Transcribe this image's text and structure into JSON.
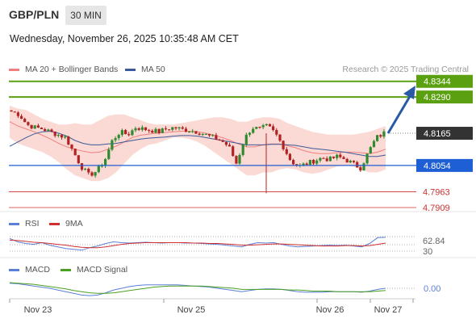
{
  "header": {
    "symbol": "GBP/PLN",
    "timeframe": "30 MIN",
    "datetime": "Wednesday, November 26, 2025 10:35:48 AM CET"
  },
  "legend": {
    "ma20": "MA 20 + Bollinger Bands",
    "ma50": "MA 50",
    "research": "Research © 2025 Trading Central",
    "rsi": "RSI",
    "rsi_ma": "9MA",
    "macd": "MACD",
    "macd_signal": "MACD Signal"
  },
  "colors": {
    "candle_up": "#2e8b2e",
    "candle_down": "#b22222",
    "bollinger_fill": "#fbd9d4",
    "ma20": "#f08080",
    "ma50": "#3b5a9a",
    "resistance": "#5aa010",
    "support_blue": "#1f5fd6",
    "support_red": "#d03030",
    "price_badge": "#333333",
    "arrow": "#2a5aa5"
  },
  "levels": {
    "r2": "4.8344",
    "r1": "4.8290",
    "current": "4.8165",
    "pivot": "4.8054",
    "s1": "4.7963",
    "s2": "4.7909"
  },
  "indicators": {
    "rsi_value": "62.84",
    "rsi_low": "30",
    "macd_value": "0.00"
  },
  "xaxis": {
    "labels": [
      "Nov 23",
      "Nov 25",
      "Nov 26",
      "Nov 27"
    ]
  },
  "chart_data": [
    {
      "type": "candlestick",
      "title": "GBP/PLN 30 MIN",
      "yrange": [
        4.7895,
        4.836
      ],
      "levels": [
        4.8344,
        4.829,
        4.8054,
        4.7963,
        4.7909
      ],
      "current": 4.8165,
      "close_path": [
        4.824,
        4.823,
        4.8195,
        4.8185,
        4.818,
        4.817,
        4.816,
        4.815,
        4.81,
        4.805,
        4.802,
        4.8035,
        4.807,
        4.814,
        4.817,
        4.816,
        4.8185,
        4.818,
        4.8175,
        4.817,
        4.818,
        4.8185,
        4.8178,
        4.8175,
        4.817,
        4.816,
        4.815,
        4.814,
        4.812,
        4.806,
        4.8145,
        4.8185,
        4.818,
        4.819,
        4.8165,
        4.812,
        4.807,
        4.805,
        4.806,
        4.807,
        4.808,
        4.8075,
        4.8085,
        4.8075,
        4.806,
        4.8045,
        4.81,
        4.815,
        4.8165
      ],
      "bollinger_upper": [
        4.826,
        4.825,
        4.8245,
        4.823,
        4.8215,
        4.8205,
        4.8195,
        4.8195,
        4.82,
        4.8195,
        4.8195,
        4.821,
        4.8225,
        4.823,
        4.823,
        4.822,
        4.821,
        4.82,
        4.8195,
        4.8195,
        4.8195,
        4.82,
        4.8205,
        4.821,
        4.8215,
        4.822,
        4.822,
        4.8215,
        4.8205,
        4.8205,
        4.8215,
        4.822,
        4.822,
        4.8215,
        4.82,
        4.819,
        4.818,
        4.817,
        4.8165,
        4.816,
        4.816,
        4.816,
        4.816,
        4.8165,
        4.817,
        4.818,
        4.819
      ],
      "bollinger_lower": [
        4.815,
        4.813,
        4.812,
        4.811,
        4.81,
        4.8085,
        4.8065,
        4.804,
        4.802,
        4.801,
        4.8,
        4.8,
        4.801,
        4.803,
        4.806,
        4.809,
        4.811,
        4.8125,
        4.813,
        4.814,
        4.815,
        4.815,
        4.8145,
        4.8135,
        4.812,
        4.81,
        4.808,
        4.806,
        4.804,
        4.802,
        4.802,
        4.803,
        4.803,
        4.804,
        4.8045,
        4.804,
        4.803,
        4.8025,
        4.803,
        4.804,
        4.805,
        4.8055,
        4.805,
        4.804,
        4.803,
        4.803,
        4.804
      ],
      "ma20": [
        4.8205,
        4.819,
        4.818,
        4.817,
        4.8158,
        4.8145,
        4.813,
        4.8118,
        4.811,
        4.8103,
        4.8098,
        4.81,
        4.811,
        4.812,
        4.8135,
        4.815,
        4.8158,
        4.8162,
        4.8165,
        4.8168,
        4.817,
        4.8172,
        4.8172,
        4.817,
        4.8165,
        4.8158,
        4.815,
        4.814,
        4.8128,
        4.8118,
        4.8118,
        4.8125,
        4.8128,
        4.8128,
        4.8122,
        4.8115,
        4.8105,
        4.8098,
        4.8095,
        4.8095,
        4.8098,
        4.81,
        4.81,
        4.8098,
        4.8095,
        4.81,
        4.811
      ],
      "ma50": [
        4.812,
        4.8135,
        4.815,
        4.8163,
        4.817,
        4.8172,
        4.8165,
        4.8155,
        4.814,
        4.813,
        4.8125,
        4.8125,
        4.8128,
        4.813,
        4.8135,
        4.814,
        4.8145,
        4.8148,
        4.815,
        4.8152,
        4.8155,
        4.8157,
        4.8157,
        4.8155,
        4.815,
        4.8145,
        4.814,
        4.8135,
        4.813,
        4.8125,
        4.8125,
        4.8125,
        4.8127,
        4.8127,
        4.8125,
        4.8123,
        4.8118,
        4.8113,
        4.811,
        4.8107,
        4.8103,
        4.81,
        4.8095,
        4.809,
        4.8085,
        4.8085,
        4.809
      ]
    },
    {
      "type": "line",
      "title": "RSI",
      "yrange": [
        20,
        80
      ],
      "series": [
        {
          "name": "RSI",
          "values": [
            60,
            52,
            48,
            46,
            50,
            44,
            40,
            36,
            34,
            32,
            38,
            42,
            48,
            52,
            50,
            49,
            50,
            51,
            50,
            49,
            50,
            50,
            49,
            49,
            48,
            47,
            46,
            44,
            42,
            40,
            46,
            50,
            49,
            50,
            46,
            42,
            40,
            41,
            42,
            43,
            44,
            43,
            44,
            42,
            40,
            48,
            62,
            62.84
          ]
        },
        {
          "name": "9MA",
          "values": [
            56,
            55,
            53,
            51,
            50,
            48,
            46,
            44,
            41,
            39,
            38,
            38,
            40,
            43,
            46,
            48,
            49,
            50,
            50,
            50,
            50,
            50,
            50,
            49,
            49,
            48,
            48,
            47,
            46,
            44,
            44,
            45,
            46,
            47,
            47,
            46,
            45,
            44,
            43,
            42,
            42,
            42,
            43,
            43,
            42,
            43,
            46,
            49
          ]
        }
      ],
      "current": 62.84,
      "reference": 30
    },
    {
      "type": "line",
      "title": "MACD",
      "series": [
        {
          "name": "MACD",
          "values": [
            0.0009,
            0.0008,
            0.0006,
            0.0004,
            0.0002,
            0.0,
            -0.0003,
            -0.0006,
            -0.0009,
            -0.0012,
            -0.0013,
            -0.0012,
            -0.0008,
            -0.0003,
            0.0,
            0.0003,
            0.0005,
            0.0006,
            0.0006,
            0.0006,
            0.0006,
            0.0006,
            0.0005,
            0.0004,
            0.0003,
            0.0002,
            0.0,
            -0.0002,
            -0.0004,
            -0.0006,
            -0.0004,
            -0.0002,
            -0.0001,
            -0.0001,
            -0.0002,
            -0.0004,
            -0.0006,
            -0.0007,
            -0.0007,
            -0.0007,
            -0.0006,
            -0.0006,
            -0.0006,
            -0.0006,
            -0.0007,
            -0.0005,
            -0.0002,
            0.0
          ]
        },
        {
          "name": "MACD Signal",
          "values": [
            0.001,
            0.0009,
            0.0008,
            0.0007,
            0.0005,
            0.0003,
            0.0001,
            -0.0001,
            -0.0004,
            -0.0006,
            -0.0008,
            -0.0009,
            -0.0009,
            -0.0008,
            -0.0006,
            -0.0004,
            -0.0002,
            0.0,
            0.0002,
            0.0003,
            0.0004,
            0.0004,
            0.0004,
            0.0004,
            0.0004,
            0.0003,
            0.0002,
            0.0001,
            0.0,
            -0.0002,
            -0.0002,
            -0.0002,
            -0.0002,
            -0.0002,
            -0.0002,
            -0.0003,
            -0.0003,
            -0.0004,
            -0.0005,
            -0.0005,
            -0.0005,
            -0.0006,
            -0.0006,
            -0.0006,
            -0.0006,
            -0.0006,
            -0.0005,
            -0.0004
          ]
        }
      ],
      "current": 0.0
    }
  ]
}
